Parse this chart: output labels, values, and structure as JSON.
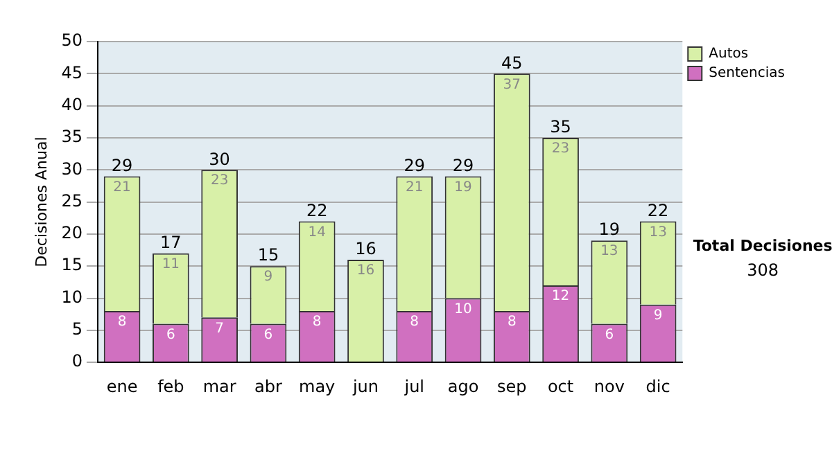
{
  "chart_data": {
    "type": "bar",
    "stacked": true,
    "ylabel": "Decisiones Anual",
    "categories": [
      "ene",
      "feb",
      "mar",
      "abr",
      "may",
      "jun",
      "jul",
      "ago",
      "sep",
      "oct",
      "nov",
      "dic"
    ],
    "series": [
      {
        "name": "Sentencias",
        "color": "#d070c0",
        "values": [
          8,
          6,
          7,
          6,
          8,
          0,
          8,
          10,
          8,
          12,
          6,
          9
        ],
        "value_labels": [
          "8",
          "6",
          "7",
          "6",
          "8",
          null,
          "8",
          "10",
          "8",
          "12",
          "6",
          "9"
        ]
      },
      {
        "name": "Autos",
        "color": "#d8f0a8",
        "values": [
          21,
          11,
          23,
          9,
          14,
          16,
          21,
          19,
          37,
          23,
          13,
          13
        ],
        "value_labels": [
          "21",
          "11",
          "23",
          "9",
          "14",
          "16",
          "21",
          "19",
          "37",
          "23",
          "13",
          "13"
        ]
      }
    ],
    "totals": [
      "29",
      "17",
      "30",
      "15",
      "22",
      "16",
      "29",
      "29",
      "45",
      "35",
      "19",
      "22"
    ],
    "ylim": [
      0,
      50
    ],
    "yticks": [
      0,
      5,
      10,
      15,
      20,
      25,
      30,
      35,
      40,
      45,
      50
    ],
    "grid": "y",
    "legend": "right",
    "annotations": [
      "Total Decisiones",
      "308"
    ]
  }
}
